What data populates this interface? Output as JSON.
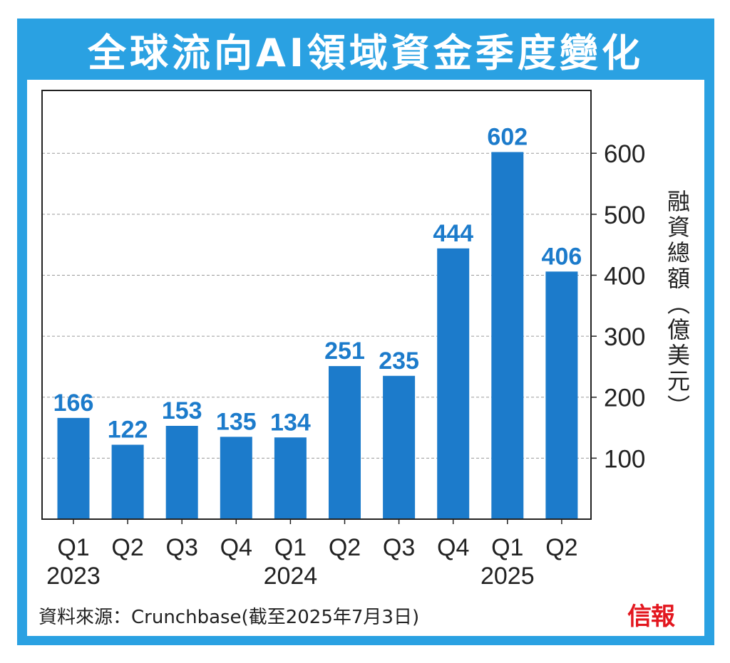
{
  "header": {
    "title": "全球流向AI領域資金季度變化"
  },
  "chart_data": {
    "type": "bar",
    "title": "全球流向AI領域資金季度變化",
    "categories": [
      "Q1",
      "Q2",
      "Q3",
      "Q4",
      "Q1",
      "Q2",
      "Q3",
      "Q4",
      "Q1",
      "Q2"
    ],
    "years": [
      {
        "label": "2023",
        "index": 0
      },
      {
        "label": "2024",
        "index": 4
      },
      {
        "label": "2025",
        "index": 8
      }
    ],
    "values": [
      166,
      122,
      153,
      135,
      134,
      251,
      235,
      444,
      602,
      406
    ],
    "ylabel_chars": [
      "融",
      "資",
      "總",
      "額",
      "︵",
      "億",
      "美",
      "元",
      "︶"
    ],
    "yticks": [
      100,
      200,
      300,
      400,
      500,
      600
    ],
    "ylim": [
      0,
      680
    ],
    "grid": true,
    "bar_color": "#1c7bcb",
    "label_color": "#1c7bcb"
  },
  "footer": {
    "source": "資料來源：Crunchbase(截至2025年7月3日)",
    "logo": "信報"
  }
}
